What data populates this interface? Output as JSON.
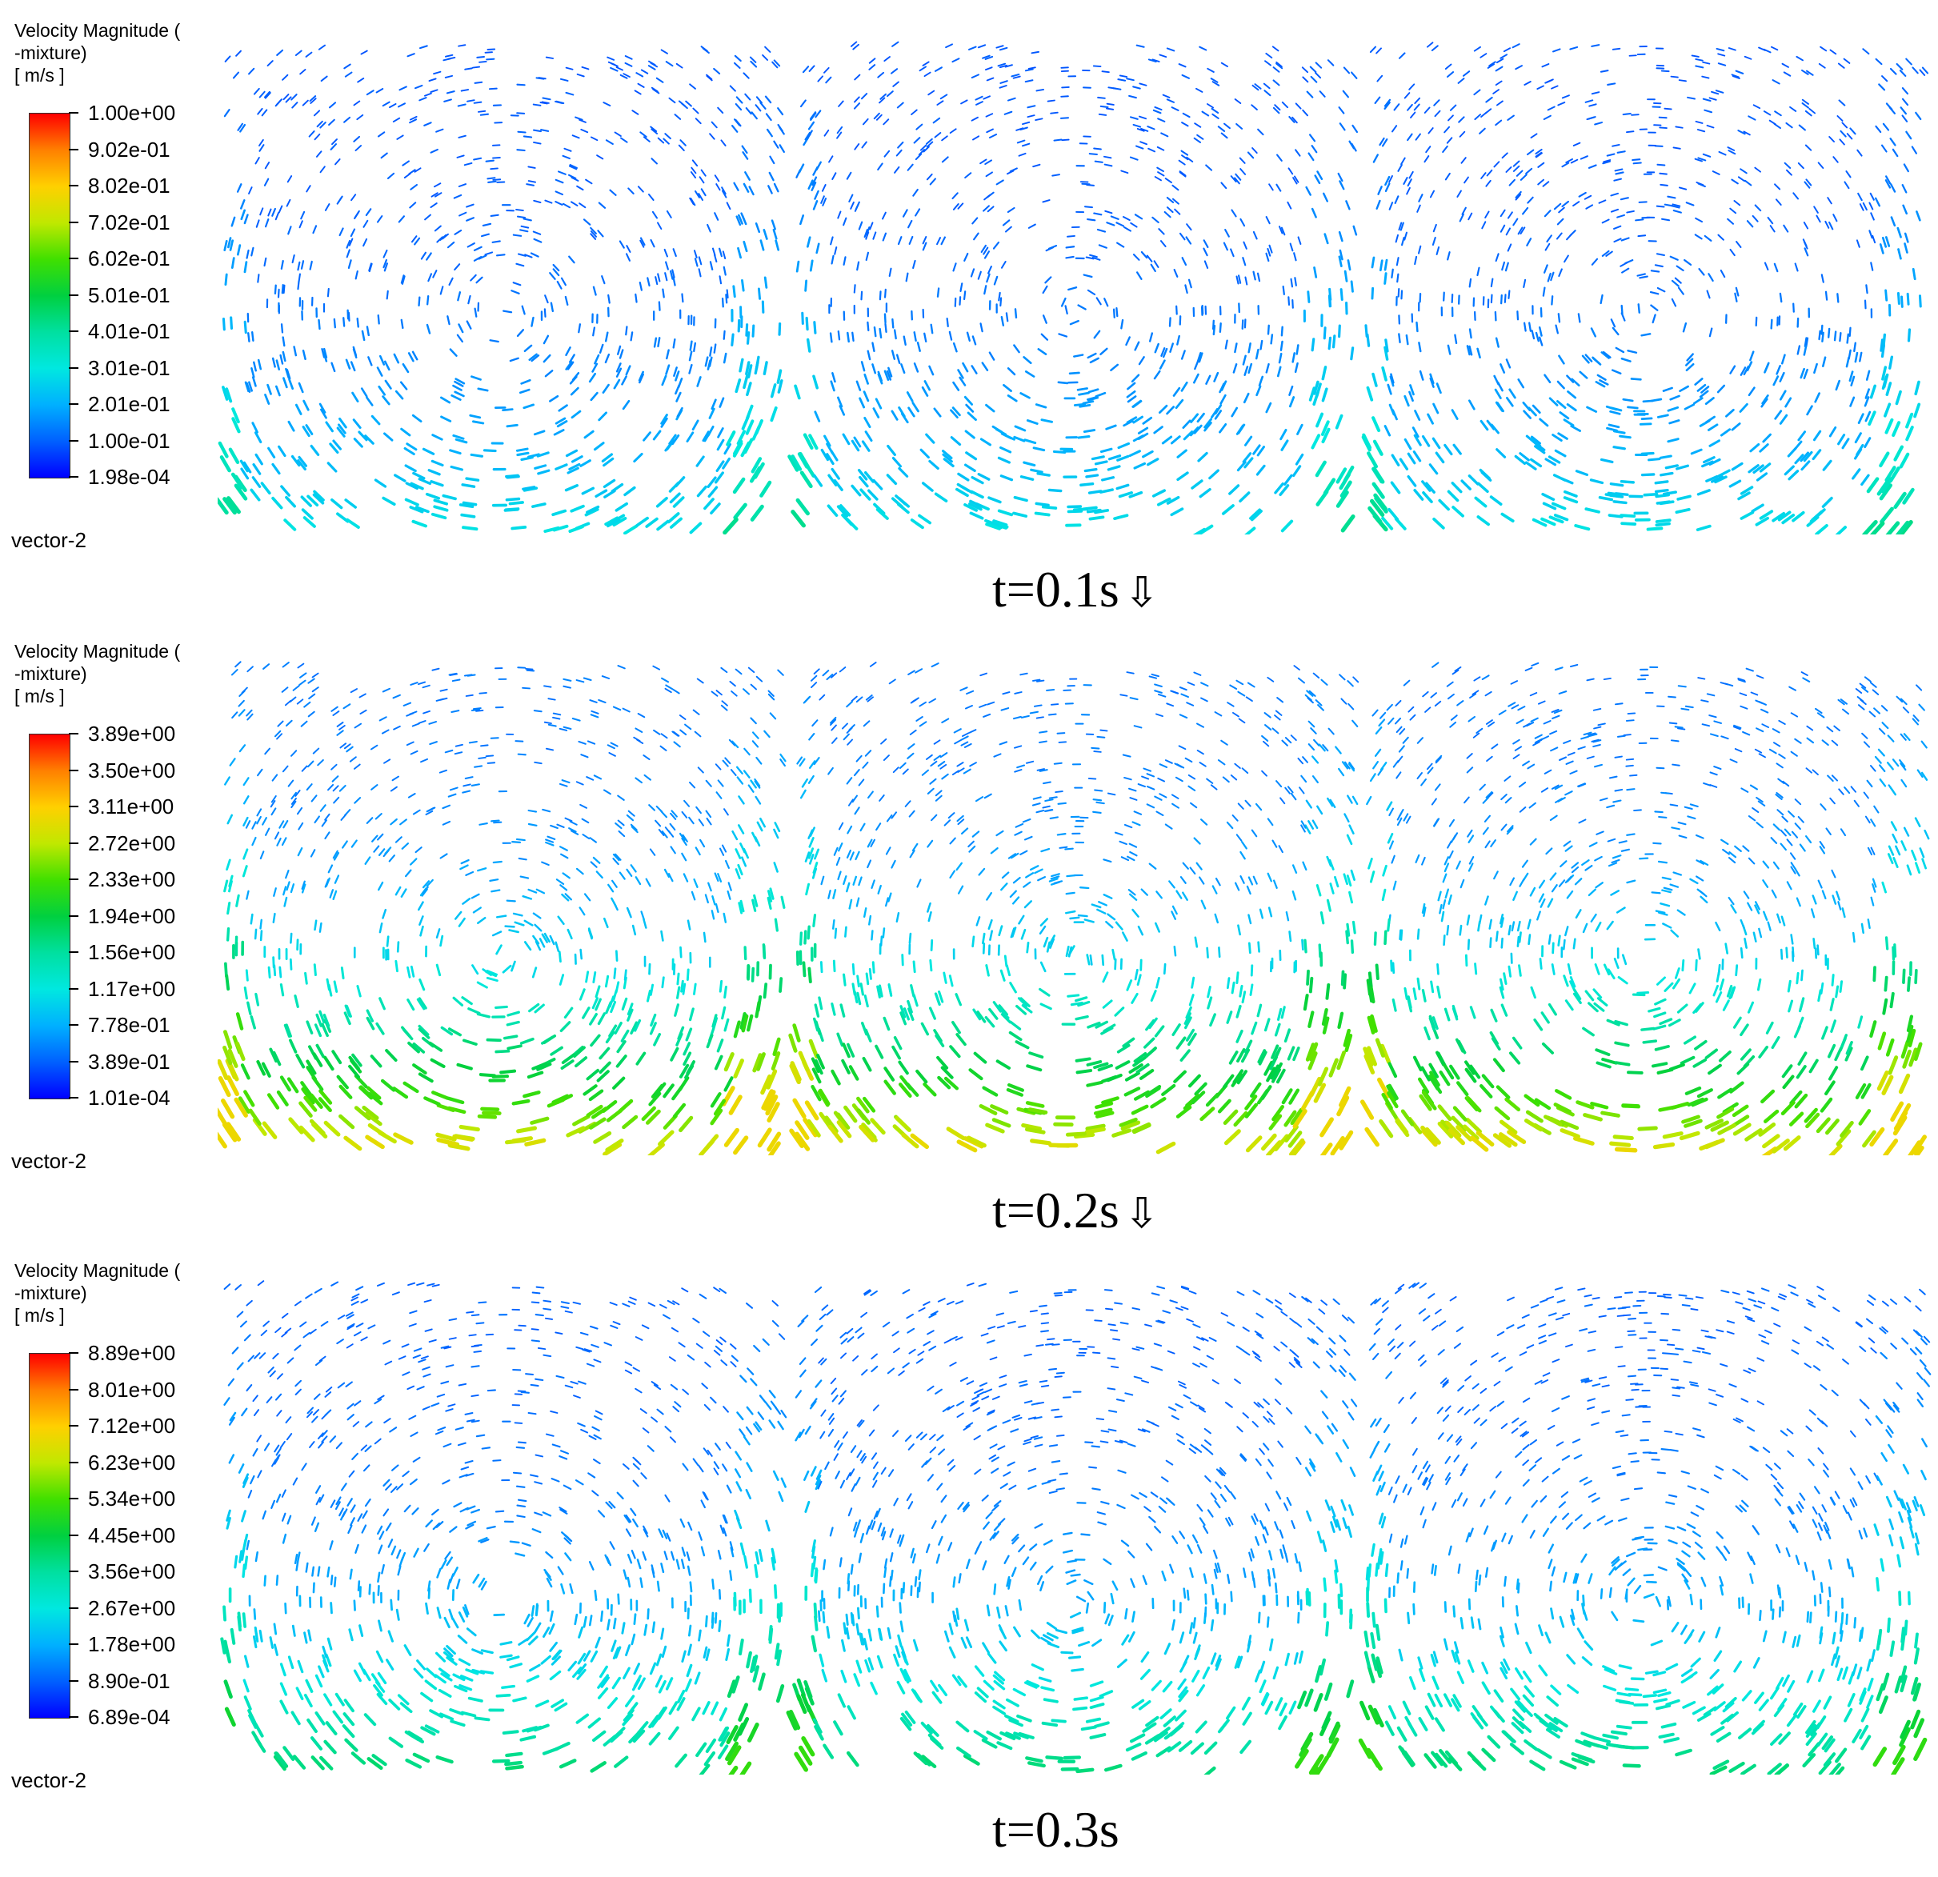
{
  "panels": [
    {
      "legend": {
        "title_line1": "Velocity Magnitude (",
        "title_line2": "-mixture)",
        "unit": "[ m/s ]",
        "ticks": [
          "1.00e+00",
          "9.02e-01",
          "8.02e-01",
          "7.02e-01",
          "6.02e-01",
          "5.01e-01",
          "4.01e-01",
          "3.01e-01",
          "2.01e-01",
          "1.00e-01",
          "1.98e-04"
        ]
      },
      "vector_label": "vector-2",
      "time_label": "t=0.1s",
      "arrow_glyph": "⇩",
      "intensity": 0.25
    },
    {
      "legend": {
        "title_line1": "Velocity Magnitude (",
        "title_line2": "-mixture)",
        "unit": "[ m/s ]",
        "ticks": [
          "3.89e+00",
          "3.50e+00",
          "3.11e+00",
          "2.72e+00",
          "2.33e+00",
          "1.94e+00",
          "1.56e+00",
          "1.17e+00",
          "7.78e-01",
          "3.89e-01",
          "1.01e-04"
        ]
      },
      "vector_label": "vector-2",
      "time_label": "t=0.2s",
      "arrow_glyph": "⇩",
      "intensity": 0.45
    },
    {
      "legend": {
        "title_line1": "Velocity Magnitude (",
        "title_line2": "-mixture)",
        "unit": "[ m/s ]",
        "ticks": [
          "8.89e+00",
          "8.01e+00",
          "7.12e+00",
          "6.23e+00",
          "5.34e+00",
          "4.45e+00",
          "3.56e+00",
          "2.67e+00",
          "1.78e+00",
          "8.90e-01",
          "6.89e-04"
        ]
      },
      "vector_label": "vector-2",
      "time_label": "t=0.3s",
      "arrow_glyph": "",
      "intensity": 0.33
    }
  ],
  "colormap": [
    "#0000ff",
    "#0060ff",
    "#00b0ff",
    "#00e8e0",
    "#00e0a0",
    "#00d040",
    "#40e000",
    "#c0e800",
    "#ffd000",
    "#ff8000",
    "#ff0000"
  ]
}
